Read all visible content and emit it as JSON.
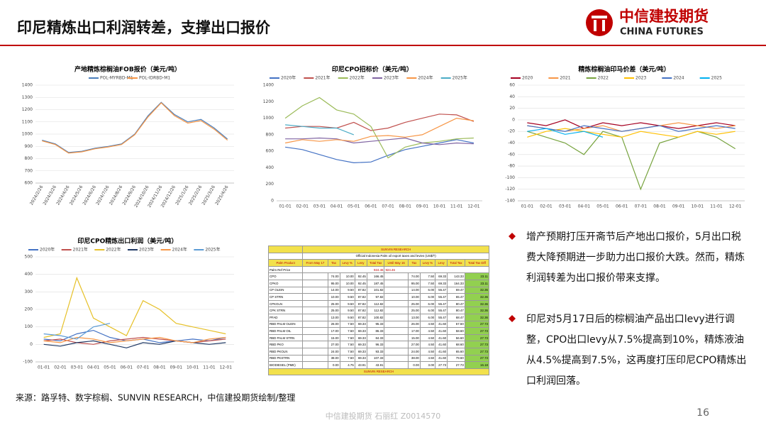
{
  "header": {
    "title": "印尼精炼出口利润转差，支撑出口报价",
    "logo_cn": "中信建投期货",
    "logo_en": "CHINA FUTURES"
  },
  "chart_data": [
    {
      "type": "line",
      "title": "产地精炼棕榈油FOB报价（美元/吨）",
      "categories": [
        "2024/2/26",
        "2024/3/26",
        "2024/4/26",
        "2024/5/26",
        "2024/6/26",
        "2024/7/26",
        "2024/8/26",
        "2024/9/26",
        "2024/10/26",
        "2024/11/26",
        "2024/12/26",
        "2025/1/26",
        "2025/2/26",
        "2025/3/26",
        "2025/4/26"
      ],
      "series": [
        {
          "name": "POL-MYRBD-M1",
          "color": "#4a7ebb",
          "values": [
            950,
            920,
            850,
            860,
            885,
            900,
            920,
            1000,
            1150,
            1260,
            1160,
            1100,
            1120,
            1050,
            960
          ]
        },
        {
          "name": "POL-IDRBD-M1",
          "color": "#f79646",
          "values": [
            945,
            915,
            845,
            855,
            880,
            895,
            915,
            995,
            1140,
            1255,
            1150,
            1090,
            1110,
            1040,
            950
          ]
        }
      ],
      "ylim": [
        600,
        1400
      ],
      "yticks": [
        600,
        700,
        800,
        900,
        1000,
        1100,
        1200,
        1300,
        1400
      ],
      "grid": true
    },
    {
      "type": "line",
      "title": "印尼CPO招标价（美元/吨）",
      "categories": [
        "01-01",
        "02-01",
        "03-01",
        "04-01",
        "05-01",
        "06-01",
        "07-01",
        "08-01",
        "09-01",
        "10-01",
        "11-01",
        "12-01"
      ],
      "series": [
        {
          "name": "2020年",
          "color": "#4472c4",
          "values": [
            650,
            620,
            560,
            500,
            460,
            470,
            550,
            620,
            660,
            700,
            740,
            700
          ]
        },
        {
          "name": "2021年",
          "color": "#c0504d",
          "values": [
            880,
            900,
            900,
            880,
            950,
            850,
            880,
            950,
            1000,
            1050,
            1040,
            960
          ]
        },
        {
          "name": "2022年",
          "color": "#9bbb59",
          "values": [
            1000,
            1150,
            1250,
            1100,
            1050,
            900,
            520,
            650,
            700,
            720,
            750,
            760
          ]
        },
        {
          "name": "2023年",
          "color": "#8064a2",
          "values": [
            750,
            750,
            760,
            750,
            700,
            720,
            740,
            760,
            700,
            680,
            700,
            690
          ]
        },
        {
          "name": "2024年",
          "color": "#f79646",
          "values": [
            700,
            740,
            720,
            740,
            720,
            780,
            790,
            770,
            800,
            900,
            1000,
            970
          ]
        },
        {
          "name": "2025年",
          "color": "#4bacc6",
          "values": [
            920,
            900,
            880,
            880,
            800,
            null,
            null,
            null,
            null,
            null,
            null,
            null
          ]
        }
      ],
      "ylim": [
        0,
        1400
      ],
      "yticks": [
        0,
        200,
        400,
        600,
        800,
        1000,
        1200,
        1400
      ],
      "grid": false
    },
    {
      "type": "line",
      "title": "精炼棕榈油印马价差（美元/吨）",
      "categories": [
        "01-01",
        "02-01",
        "03-01",
        "04-01",
        "05-01",
        "06-01",
        "07-01",
        "08-01",
        "09-01",
        "10-01",
        "11-01",
        "12-01"
      ],
      "series": [
        {
          "name": "2020",
          "color": "#a50021",
          "values": [
            -5,
            -10,
            0,
            -15,
            -5,
            -10,
            -5,
            -10,
            -15,
            -10,
            -5,
            -10
          ]
        },
        {
          "name": "2021",
          "color": "#f79646",
          "values": [
            -10,
            -15,
            -20,
            -15,
            -10,
            -20,
            -15,
            -10,
            -5,
            -10,
            -15,
            -10
          ]
        },
        {
          "name": "2022",
          "color": "#77a33e",
          "values": [
            -20,
            -30,
            -40,
            -60,
            -20,
            -30,
            -120,
            -40,
            -30,
            -20,
            -30,
            -50
          ]
        },
        {
          "name": "2023",
          "color": "#ffc000",
          "values": [
            -30,
            -20,
            -15,
            -20,
            -25,
            -30,
            -20,
            -25,
            -30,
            -20,
            -25,
            -20
          ]
        },
        {
          "name": "2024",
          "color": "#4472c4",
          "values": [
            -10,
            -15,
            -20,
            -10,
            -15,
            -20,
            -15,
            -10,
            -20,
            -15,
            -10,
            -15
          ]
        },
        {
          "name": "2025",
          "color": "#00b0f0",
          "values": [
            -20,
            -15,
            -25,
            -20,
            -30,
            null,
            null,
            null,
            null,
            null,
            null,
            null
          ]
        }
      ],
      "ylim": [
        -140,
        60
      ],
      "yticks": [
        -140,
        -120,
        -100,
        -80,
        -60,
        -40,
        -20,
        0,
        20,
        40,
        60
      ],
      "grid": true
    },
    {
      "type": "line",
      "title": "印尼CPO精炼出口利润（美元/吨）",
      "categories": [
        "01-01",
        "02-01",
        "03-01",
        "04-01",
        "05-01",
        "06-01",
        "07-01",
        "08-01",
        "09-01",
        "10-01",
        "11-01",
        "12-01"
      ],
      "series": [
        {
          "name": "2020年",
          "color": "#4472c4",
          "values": [
            30,
            20,
            60,
            80,
            40,
            20,
            30,
            10,
            20,
            30,
            20,
            40
          ]
        },
        {
          "name": "2021年",
          "color": "#c0504d",
          "values": [
            20,
            30,
            10,
            0,
            20,
            30,
            40,
            30,
            20,
            10,
            20,
            30
          ]
        },
        {
          "name": "2022年",
          "color": "#e6c027",
          "values": [
            40,
            60,
            380,
            150,
            100,
            50,
            250,
            200,
            120,
            100,
            80,
            60
          ]
        },
        {
          "name": "2023年",
          "color": "#1f3864",
          "values": [
            0,
            -10,
            10,
            20,
            0,
            -20,
            10,
            0,
            20,
            10,
            0,
            10
          ]
        },
        {
          "name": "2024年",
          "color": "#f79646",
          "values": [
            20,
            10,
            40,
            30,
            10,
            20,
            30,
            40,
            20,
            10,
            30,
            40
          ]
        },
        {
          "name": "2025年",
          "color": "#5b9bd5",
          "values": [
            60,
            50,
            30,
            100,
            120,
            null,
            null,
            null,
            null,
            null,
            null,
            null
          ]
        }
      ],
      "ylim": [
        -100,
        500
      ],
      "yticks": [
        -100,
        0,
        100,
        200,
        300,
        400,
        500
      ],
      "grid": true
    }
  ],
  "table": {
    "brand": "SUNVIN RESEARCH",
    "caption": "Official Indonesia Palm oil export taxes and levies (US$/T)",
    "headers": [
      "Palm Product",
      "From May 17",
      "Tax",
      "Levy %",
      "Levy",
      "Total Tax",
      "Until May 16",
      "Tax",
      "Levy %",
      "Levy",
      "Total Tax",
      "Total Tax Diff"
    ],
    "ref": [
      "Palm Ref Price",
      "924.46",
      "924.46"
    ],
    "rows": [
      [
        "CPO",
        "74.00",
        "10.00",
        "92.45",
        "166.45",
        "74.00",
        "7.50",
        "69.33",
        "143.33",
        "23.11"
      ],
      [
        "CPKO",
        "95.00",
        "10.00",
        "92.45",
        "187.45",
        "95.00",
        "7.50",
        "69.33",
        "164.33",
        "23.11"
      ],
      [
        "CP OLEIN",
        "14.00",
        "9.50",
        "87.82",
        "101.82",
        "14.00",
        "6.00",
        "55.47",
        "69.47",
        "32.36"
      ],
      [
        "CP STRN",
        "10.00",
        "9.50",
        "87.82",
        "97.82",
        "10.00",
        "6.00",
        "55.47",
        "65.47",
        "32.36"
      ],
      [
        "CPKOLN",
        "25.00",
        "9.50",
        "87.82",
        "112.82",
        "25.00",
        "6.00",
        "55.47",
        "80.47",
        "32.36"
      ],
      [
        "CPK STRN",
        "25.00",
        "9.50",
        "87.82",
        "112.82",
        "25.00",
        "6.00",
        "55.47",
        "80.47",
        "32.36"
      ],
      [
        "PFAD",
        "13.00",
        "9.50",
        "87.82",
        "100.82",
        "13.00",
        "6.00",
        "55.47",
        "68.47",
        "32.36"
      ],
      [
        "RBD PALM OLEIN",
        "26.00",
        "7.50",
        "69.33",
        "95.33",
        "26.00",
        "4.50",
        "41.60",
        "67.60",
        "27.73"
      ],
      [
        "RBD PALM OIL",
        "17.00",
        "7.50",
        "69.33",
        "86.33",
        "17.00",
        "4.50",
        "41.60",
        "58.60",
        "27.73"
      ],
      [
        "RBD PALM STRN",
        "15.00",
        "7.50",
        "69.33",
        "84.33",
        "15.00",
        "4.50",
        "41.60",
        "56.60",
        "27.73"
      ],
      [
        "RBD PKO",
        "27.00",
        "7.50",
        "69.33",
        "96.33",
        "27.00",
        "4.50",
        "41.60",
        "68.60",
        "27.73"
      ],
      [
        "RBD PKOLN",
        "24.00",
        "7.50",
        "69.33",
        "93.33",
        "24.00",
        "4.50",
        "41.60",
        "65.60",
        "27.73"
      ],
      [
        "RBD PKSTRN",
        "38.00",
        "7.50",
        "69.33",
        "107.33",
        "38.00",
        "4.50",
        "41.60",
        "79.60",
        "27.73"
      ],
      [
        "BIODIESEL (PME)",
        "0.00",
        "4.75",
        "43.91",
        "43.91",
        "0.00",
        "3.00",
        "27.73",
        "27.73",
        "16.18"
      ]
    ]
  },
  "bullets": [
    "增产预期打压开斋节后产地出口报价，5月出口税费大降预期进一步助力出口报价大跌。然而，精炼利润转差为出口报价带来支撑。",
    "印尼对5月17日后的棕榈油产品出口levy进行调整，CPO出口levy从7.5%提高到10%，精炼液油从4.5%提高到7.5%，这再度打压印尼CPO精炼出口利润回落。"
  ],
  "source": "来源：路孚特、数字棕榈、SUNVIN RESEARCH，中信建投期货绘制/整理",
  "footer": {
    "watermark": "中信建投期货 石丽红 Z0014570",
    "page": "16"
  }
}
